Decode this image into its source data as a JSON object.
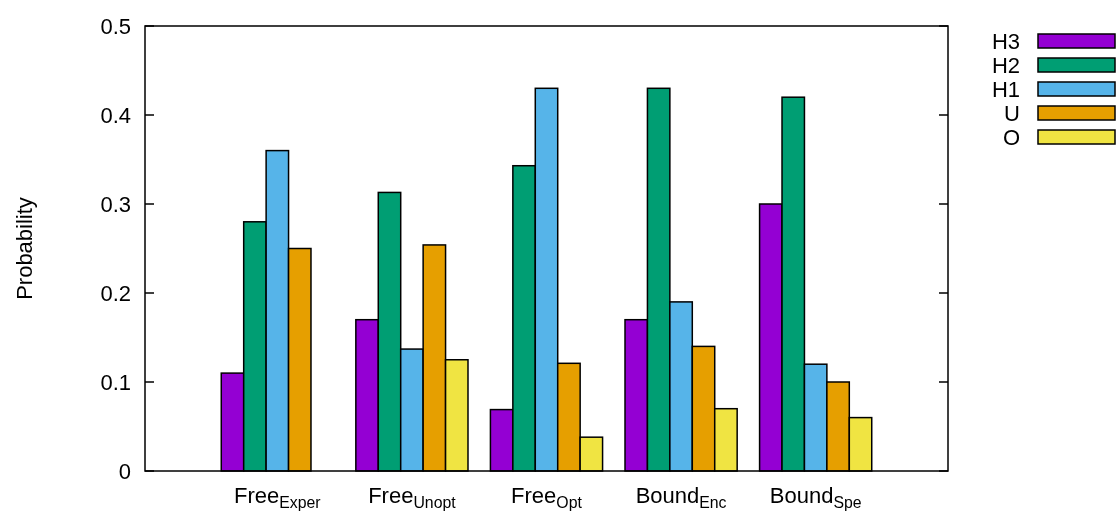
{
  "chart_data": {
    "type": "bar",
    "ylabel": "Probability",
    "categories": [
      "Free$_{Exper}$",
      "Free$_{Unopt}$",
      "Free$_{Opt}$",
      "Bound$_{Enc}$",
      "Bound$_{Spe}$"
    ],
    "series": [
      {
        "name": "H3",
        "color": "#9400d3",
        "values": [
          0.11,
          0.17,
          0.069,
          0.17,
          0.3
        ]
      },
      {
        "name": "H2",
        "color": "#009e73",
        "values": [
          0.28,
          0.313,
          0.343,
          0.43,
          0.42
        ]
      },
      {
        "name": "H1",
        "color": "#56b4e9",
        "values": [
          0.36,
          0.137,
          0.43,
          0.19,
          0.12
        ]
      },
      {
        "name": "U",
        "color": "#e69f00",
        "values": [
          0.25,
          0.254,
          0.121,
          0.14,
          0.1
        ]
      },
      {
        "name": "O",
        "color": "#f0e442",
        "values": [
          null,
          0.125,
          0.038,
          0.07,
          0.06
        ]
      }
    ],
    "ylim": [
      0,
      0.5
    ],
    "yticks": [
      0,
      0.1,
      0.2,
      0.3,
      0.4,
      0.5
    ],
    "legend": "right"
  }
}
